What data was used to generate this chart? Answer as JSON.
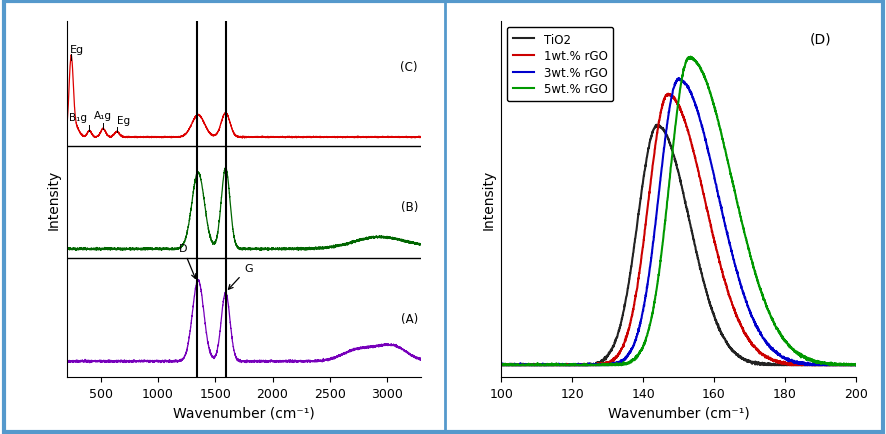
{
  "left_panel": {
    "xlabel": "Wavenumber (cm⁻¹)",
    "ylabel": "Intensity",
    "label_C": "(C)",
    "label_B": "(B)",
    "label_A": "(A)",
    "xmin": 200,
    "xmax": 3300,
    "vline1": 1340,
    "vline2": 1590,
    "color_A": "#7700bb",
    "color_B": "#006600",
    "color_C": "#dd0000",
    "xticks": [
      500,
      1000,
      1500,
      2000,
      2500,
      3000
    ]
  },
  "right_panel": {
    "xlabel": "Wavenumber (cm⁻¹)",
    "ylabel": "Intensity",
    "label_D": "(D)",
    "xmin": 100,
    "xmax": 200,
    "legend_labels": [
      "TiO2",
      "1wt.% rGO",
      "3wt.% rGO",
      "5wt.% rGO"
    ],
    "legend_colors": [
      "#222222",
      "#cc0000",
      "#0000cc",
      "#009900"
    ],
    "xticks": [
      100,
      120,
      140,
      160,
      180,
      200
    ]
  },
  "fig_background": "#ffffff",
  "border_color": "#5599cc"
}
